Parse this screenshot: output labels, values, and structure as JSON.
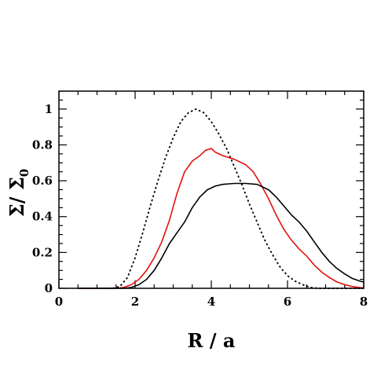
{
  "chart_data": {
    "type": "line",
    "title": "",
    "xlabel": "R / a",
    "ylabel": {
      "main": "Σ/ Σ",
      "subscript": "0"
    },
    "xlim": [
      0,
      8
    ],
    "ylim": [
      0,
      1.1
    ],
    "x_ticks": [
      0,
      2,
      4,
      6,
      8
    ],
    "x_tick_labels": [
      "0",
      "2",
      "4",
      "6",
      "8"
    ],
    "y_ticks": [
      0,
      0.2,
      0.4,
      0.6,
      0.8,
      1
    ],
    "y_tick_labels": [
      "0",
      "0.2",
      "0.4",
      "0.6",
      "0.8",
      "1"
    ],
    "grid": false,
    "legend": "none",
    "series": [
      {
        "color": "#000000",
        "style": "dotted",
        "points": [
          [
            0.5,
            0
          ],
          [
            1.4,
            0
          ],
          [
            1.6,
            0.01
          ],
          [
            1.8,
            0.06
          ],
          [
            2.0,
            0.17
          ],
          [
            2.2,
            0.31
          ],
          [
            2.4,
            0.46
          ],
          [
            2.6,
            0.6
          ],
          [
            2.8,
            0.73
          ],
          [
            3.0,
            0.84
          ],
          [
            3.2,
            0.93
          ],
          [
            3.4,
            0.98
          ],
          [
            3.6,
            1.0
          ],
          [
            3.8,
            0.98
          ],
          [
            4.0,
            0.93
          ],
          [
            4.2,
            0.86
          ],
          [
            4.4,
            0.78
          ],
          [
            4.6,
            0.68
          ],
          [
            4.8,
            0.58
          ],
          [
            5.0,
            0.47
          ],
          [
            5.2,
            0.37
          ],
          [
            5.4,
            0.27
          ],
          [
            5.6,
            0.19
          ],
          [
            5.8,
            0.12
          ],
          [
            6.0,
            0.07
          ],
          [
            6.2,
            0.04
          ],
          [
            6.4,
            0.02
          ],
          [
            6.6,
            0.005
          ],
          [
            6.8,
            0
          ],
          [
            8.0,
            0
          ]
        ]
      },
      {
        "color": "#e3110f",
        "style": "solid",
        "points": [
          [
            0.5,
            0
          ],
          [
            1.5,
            0
          ],
          [
            1.7,
            0.005
          ],
          [
            1.9,
            0.02
          ],
          [
            2.1,
            0.05
          ],
          [
            2.3,
            0.1
          ],
          [
            2.5,
            0.17
          ],
          [
            2.7,
            0.26
          ],
          [
            2.9,
            0.38
          ],
          [
            3.1,
            0.53
          ],
          [
            3.3,
            0.65
          ],
          [
            3.5,
            0.71
          ],
          [
            3.7,
            0.74
          ],
          [
            3.85,
            0.77
          ],
          [
            4.0,
            0.78
          ],
          [
            4.1,
            0.76
          ],
          [
            4.3,
            0.74
          ],
          [
            4.6,
            0.72
          ],
          [
            4.9,
            0.69
          ],
          [
            5.1,
            0.65
          ],
          [
            5.3,
            0.58
          ],
          [
            5.5,
            0.5
          ],
          [
            5.7,
            0.41
          ],
          [
            5.9,
            0.33
          ],
          [
            6.1,
            0.27
          ],
          [
            6.3,
            0.22
          ],
          [
            6.5,
            0.18
          ],
          [
            6.7,
            0.13
          ],
          [
            6.9,
            0.09
          ],
          [
            7.1,
            0.06
          ],
          [
            7.3,
            0.035
          ],
          [
            7.5,
            0.02
          ],
          [
            7.7,
            0.01
          ],
          [
            7.9,
            0.004
          ],
          [
            8.0,
            0.002
          ]
        ]
      },
      {
        "color": "#000000",
        "style": "solid",
        "points": [
          [
            0.5,
            0
          ],
          [
            1.7,
            0
          ],
          [
            1.9,
            0.005
          ],
          [
            2.1,
            0.02
          ],
          [
            2.3,
            0.05
          ],
          [
            2.5,
            0.1
          ],
          [
            2.7,
            0.17
          ],
          [
            2.9,
            0.25
          ],
          [
            3.1,
            0.31
          ],
          [
            3.3,
            0.37
          ],
          [
            3.5,
            0.45
          ],
          [
            3.7,
            0.51
          ],
          [
            3.9,
            0.55
          ],
          [
            4.1,
            0.57
          ],
          [
            4.3,
            0.58
          ],
          [
            4.6,
            0.585
          ],
          [
            4.9,
            0.585
          ],
          [
            5.2,
            0.58
          ],
          [
            5.5,
            0.55
          ],
          [
            5.7,
            0.51
          ],
          [
            5.9,
            0.46
          ],
          [
            6.1,
            0.41
          ],
          [
            6.3,
            0.37
          ],
          [
            6.5,
            0.32
          ],
          [
            6.7,
            0.26
          ],
          [
            6.9,
            0.2
          ],
          [
            7.1,
            0.15
          ],
          [
            7.3,
            0.11
          ],
          [
            7.5,
            0.08
          ],
          [
            7.7,
            0.055
          ],
          [
            7.9,
            0.04
          ],
          [
            8.0,
            0.035
          ]
        ]
      }
    ]
  }
}
